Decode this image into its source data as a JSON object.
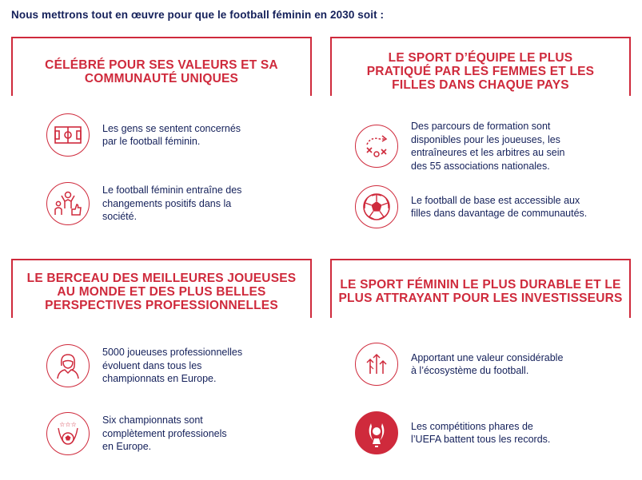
{
  "intro": "Nous mettrons tout en œuvre pour que le football féminin en 2030 soit :",
  "accent_color": "#cf2a3c",
  "text_color": "#14205a",
  "panels": [
    {
      "heading_lines": [
        "CÉLÉBRÉ POUR SES VALEURS ET SA",
        "COMMUNAUTÉ UNIQUES"
      ],
      "items": [
        {
          "icon": "football-pitch-icon",
          "lines": [
            "Les gens se sentent concernés",
            "par le football féminin."
          ]
        },
        {
          "icon": "community-thumbs-up-icon",
          "lines": [
            "Le football féminin entraîne des",
            "changements positifs dans la",
            "société."
          ]
        }
      ]
    },
    {
      "heading_lines": [
        "LE SPORT D’ÉQUIPE LE PLUS",
        "PRATIQUÉ PAR LES FEMMES ET LES",
        "FILLES DANS CHAQUE PAYS"
      ],
      "items": [
        {
          "icon": "tactics-board-icon",
          "lines": [
            "Des parcours de formation sont",
            "disponibles pour les joueuses, les",
            "entraîneures  et les arbitres au sein",
            "des 55 associations nationales."
          ]
        },
        {
          "icon": "soccer-ball-icon",
          "lines": [
            "Le football de base est accessible aux",
            "filles dans davantage de communautés."
          ]
        }
      ]
    },
    {
      "heading_lines": [
        "LE BERCEAU DES MEILLEURES JOUEUSES",
        "AU MONDE ET DES PLUS BELLES",
        "PERSPECTIVES PROFESSIONNELLES"
      ],
      "items": [
        {
          "icon": "female-player-icon",
          "lines": [
            "5000 joueuses professionnelles",
            "évoluent dans tous les",
            "championnats en Europe."
          ]
        },
        {
          "icon": "star-badge-icon",
          "lines": [
            "Six championnats sont",
            "complètement professionels",
            "en Europe."
          ]
        }
      ]
    },
    {
      "heading_lines": [
        "LE SPORT FÉMININ LE PLUS DURABLE ET LE",
        "PLUS ATTRAYANT POUR LES INVESTISSEURS"
      ],
      "items": [
        {
          "icon": "growth-arrows-icon",
          "lines": [
            "Apportant une valeur considérable",
            "à l’écosystème du football."
          ]
        },
        {
          "icon": "uefa-trophy-icon",
          "lines": [
            "Les compétitions phares de",
            "l’UEFA battent tous les records."
          ]
        }
      ]
    }
  ]
}
